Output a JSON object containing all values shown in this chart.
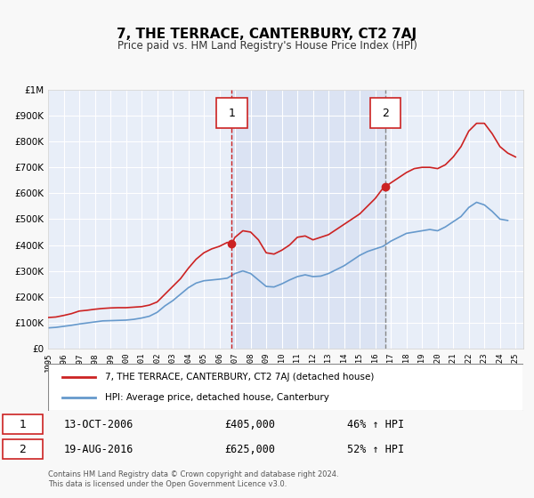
{
  "title": "7, THE TERRACE, CANTERBURY, CT2 7AJ",
  "subtitle": "Price paid vs. HM Land Registry's House Price Index (HPI)",
  "bg_color": "#f0f4ff",
  "plot_bg_color": "#e8eef8",
  "grid_color": "#ffffff",
  "ylim": [
    0,
    1000000
  ],
  "yticks": [
    0,
    100000,
    200000,
    300000,
    400000,
    500000,
    600000,
    700000,
    800000,
    900000,
    1000000
  ],
  "ytick_labels": [
    "£0",
    "£100K",
    "£200K",
    "£300K",
    "£400K",
    "£500K",
    "£600K",
    "£700K",
    "£800K",
    "£900K",
    "£1M"
  ],
  "xlim_start": 1995.0,
  "xlim_end": 2025.5,
  "xticks": [
    1995,
    1996,
    1997,
    1998,
    1999,
    2000,
    2001,
    2002,
    2003,
    2004,
    2005,
    2006,
    2007,
    2008,
    2009,
    2010,
    2011,
    2012,
    2013,
    2014,
    2015,
    2016,
    2017,
    2018,
    2019,
    2020,
    2021,
    2022,
    2023,
    2024,
    2025
  ],
  "red_line_color": "#cc2222",
  "blue_line_color": "#6699cc",
  "marker1_x": 2006.79,
  "marker1_y": 405000,
  "marker2_x": 2016.64,
  "marker2_y": 625000,
  "vline1_x": 2006.79,
  "vline2_x": 2016.64,
  "vline_color": "#cc2222",
  "label1_date": "13-OCT-2006",
  "label1_price": "£405,000",
  "label1_pct": "46% ↑ HPI",
  "label2_date": "19-AUG-2016",
  "label2_price": "£625,000",
  "label2_pct": "52% ↑ HPI",
  "legend_label_red": "7, THE TERRACE, CANTERBURY, CT2 7AJ (detached house)",
  "legend_label_blue": "HPI: Average price, detached house, Canterbury",
  "footer_text": "Contains HM Land Registry data © Crown copyright and database right 2024.\nThis data is licensed under the Open Government Licence v3.0.",
  "red_x": [
    1995.0,
    1995.5,
    1996.0,
    1996.5,
    1997.0,
    1997.5,
    1998.0,
    1998.5,
    1999.0,
    1999.5,
    2000.0,
    2000.5,
    2001.0,
    2001.5,
    2002.0,
    2002.5,
    2003.0,
    2003.5,
    2004.0,
    2004.5,
    2005.0,
    2005.5,
    2006.0,
    2006.5,
    2006.79,
    2007.0,
    2007.5,
    2008.0,
    2008.5,
    2009.0,
    2009.5,
    2010.0,
    2010.5,
    2011.0,
    2011.5,
    2012.0,
    2012.5,
    2013.0,
    2013.5,
    2014.0,
    2014.5,
    2015.0,
    2015.5,
    2016.0,
    2016.5,
    2016.64,
    2017.0,
    2017.5,
    2018.0,
    2018.5,
    2019.0,
    2019.5,
    2020.0,
    2020.5,
    2021.0,
    2021.5,
    2022.0,
    2022.5,
    2023.0,
    2023.5,
    2024.0,
    2024.5,
    2025.0
  ],
  "red_y": [
    120000,
    122000,
    128000,
    135000,
    145000,
    148000,
    152000,
    155000,
    157000,
    158000,
    158000,
    160000,
    162000,
    168000,
    180000,
    210000,
    240000,
    270000,
    310000,
    345000,
    370000,
    385000,
    395000,
    410000,
    405000,
    430000,
    455000,
    450000,
    420000,
    370000,
    365000,
    380000,
    400000,
    430000,
    435000,
    420000,
    430000,
    440000,
    460000,
    480000,
    500000,
    520000,
    550000,
    580000,
    620000,
    625000,
    640000,
    660000,
    680000,
    695000,
    700000,
    700000,
    695000,
    710000,
    740000,
    780000,
    840000,
    870000,
    870000,
    830000,
    780000,
    755000,
    740000
  ],
  "blue_x": [
    1995.0,
    1995.5,
    1996.0,
    1996.5,
    1997.0,
    1997.5,
    1998.0,
    1998.5,
    1999.0,
    1999.5,
    2000.0,
    2000.5,
    2001.0,
    2001.5,
    2002.0,
    2002.5,
    2003.0,
    2003.5,
    2004.0,
    2004.5,
    2005.0,
    2005.5,
    2006.0,
    2006.5,
    2007.0,
    2007.5,
    2008.0,
    2008.5,
    2009.0,
    2009.5,
    2010.0,
    2010.5,
    2011.0,
    2011.5,
    2012.0,
    2012.5,
    2013.0,
    2013.5,
    2014.0,
    2014.5,
    2015.0,
    2015.5,
    2016.0,
    2016.5,
    2017.0,
    2017.5,
    2018.0,
    2018.5,
    2019.0,
    2019.5,
    2020.0,
    2020.5,
    2021.0,
    2021.5,
    2022.0,
    2022.5,
    2023.0,
    2023.5,
    2024.0,
    2024.5
  ],
  "blue_y": [
    80000,
    82000,
    86000,
    90000,
    95000,
    99000,
    103000,
    107000,
    108000,
    109000,
    110000,
    113000,
    118000,
    125000,
    140000,
    165000,
    185000,
    210000,
    235000,
    253000,
    262000,
    265000,
    268000,
    272000,
    290000,
    300000,
    290000,
    265000,
    240000,
    238000,
    250000,
    265000,
    278000,
    285000,
    278000,
    280000,
    290000,
    305000,
    320000,
    340000,
    360000,
    375000,
    385000,
    395000,
    415000,
    430000,
    445000,
    450000,
    455000,
    460000,
    455000,
    470000,
    490000,
    510000,
    545000,
    565000,
    555000,
    530000,
    500000,
    495000
  ]
}
